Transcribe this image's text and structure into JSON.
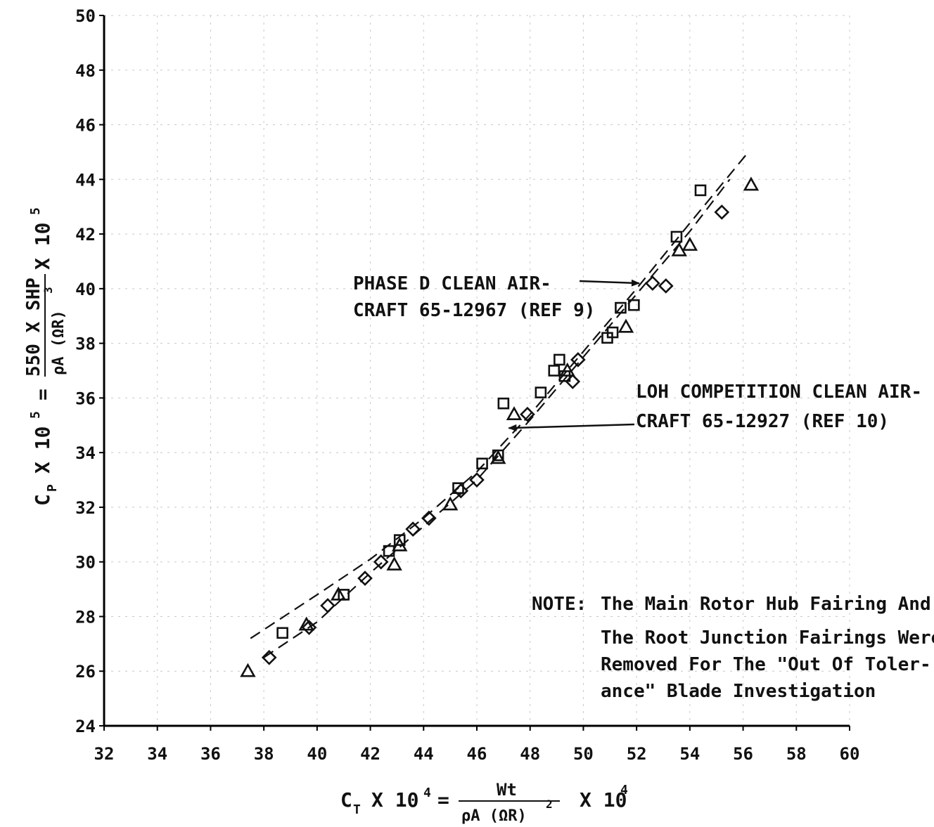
{
  "chart_data": {
    "type": "scatter",
    "x_axis": {
      "ticks": [
        32,
        34,
        36,
        38,
        40,
        42,
        44,
        46,
        48,
        50,
        52,
        54,
        56,
        58,
        60
      ],
      "range": [
        32,
        60
      ],
      "label": {
        "lhs": "C",
        "lhs_sub": "T",
        "times": "X 10",
        "exp": "4",
        "eq": "=",
        "numerator": "Wt",
        "denominator": "ρA (ΩR)",
        "den_exp": "2",
        "trail": "X 10",
        "trail_exp": "4"
      }
    },
    "y_axis": {
      "ticks": [
        24,
        26,
        28,
        30,
        32,
        34,
        36,
        38,
        40,
        42,
        44,
        46,
        48,
        50
      ],
      "range": [
        24,
        50
      ],
      "label": {
        "lhs": "C",
        "lhs_sub": "P",
        "times": "X 10",
        "exp": "5",
        "eq": "=",
        "numerator": "550 X SHP",
        "denominator": "ρA (ΩR)",
        "den_exp": "3",
        "trail": "X 10",
        "trail_exp": "5"
      }
    },
    "grid": true,
    "series": [
      {
        "marker": "square",
        "points": [
          [
            38.7,
            27.4
          ],
          [
            41.0,
            28.8
          ],
          [
            42.7,
            30.4
          ],
          [
            43.1,
            30.8
          ],
          [
            45.3,
            32.7
          ],
          [
            46.2,
            33.6
          ],
          [
            46.8,
            33.9
          ],
          [
            47.0,
            35.8
          ],
          [
            48.4,
            36.2
          ],
          [
            48.9,
            37.0
          ],
          [
            49.1,
            37.4
          ],
          [
            49.3,
            36.8
          ],
          [
            50.9,
            38.2
          ],
          [
            51.1,
            38.4
          ],
          [
            51.4,
            39.3
          ],
          [
            51.9,
            39.4
          ],
          [
            53.5,
            41.9
          ],
          [
            54.4,
            43.6
          ]
        ]
      },
      {
        "marker": "diamond",
        "points": [
          [
            38.2,
            26.5
          ],
          [
            39.7,
            27.6
          ],
          [
            40.4,
            28.4
          ],
          [
            41.8,
            29.4
          ],
          [
            42.4,
            30.0
          ],
          [
            43.6,
            31.2
          ],
          [
            44.2,
            31.6
          ],
          [
            45.4,
            32.6
          ],
          [
            46.0,
            33.0
          ],
          [
            47.9,
            35.4
          ],
          [
            49.6,
            36.6
          ],
          [
            49.8,
            37.4
          ],
          [
            52.6,
            40.2
          ],
          [
            53.1,
            40.1
          ],
          [
            55.2,
            42.8
          ]
        ]
      },
      {
        "marker": "triangle",
        "points": [
          [
            37.4,
            26.0
          ],
          [
            39.6,
            27.7
          ],
          [
            40.8,
            28.8
          ],
          [
            42.9,
            29.9
          ],
          [
            43.1,
            30.6
          ],
          [
            45.0,
            32.1
          ],
          [
            46.8,
            33.8
          ],
          [
            47.4,
            35.4
          ],
          [
            49.4,
            37.0
          ],
          [
            51.6,
            38.6
          ],
          [
            53.6,
            41.4
          ],
          [
            54.0,
            41.6
          ],
          [
            56.3,
            43.8
          ]
        ]
      }
    ],
    "curves": [
      {
        "style": "dashed",
        "points": [
          [
            37.5,
            27.2
          ],
          [
            40.0,
            28.8
          ],
          [
            42.0,
            30.1
          ],
          [
            44.0,
            31.6
          ],
          [
            46.0,
            33.3
          ],
          [
            48.0,
            35.4
          ],
          [
            50.0,
            37.7
          ],
          [
            52.0,
            40.0
          ],
          [
            54.0,
            42.4
          ],
          [
            56.2,
            45.0
          ]
        ]
      },
      {
        "style": "dashed",
        "points": [
          [
            38.0,
            26.5
          ],
          [
            40.0,
            27.8
          ],
          [
            42.0,
            29.6
          ],
          [
            44.0,
            31.3
          ],
          [
            46.0,
            33.0
          ],
          [
            48.0,
            35.2
          ],
          [
            50.0,
            37.5
          ],
          [
            52.0,
            39.8
          ],
          [
            54.0,
            42.1
          ],
          [
            55.5,
            44.0
          ]
        ]
      }
    ],
    "annotations": [
      {
        "lines": [
          "PHASE D CLEAN AIR-",
          "CRAFT 65-12967 (REF 9)"
        ],
        "arrow_to": [
          52.1,
          40.2
        ]
      },
      {
        "lines": [
          "LOH COMPETITION CLEAN AIR-",
          "CRAFT 65-12927 (REF 10)"
        ],
        "arrow_to": [
          47.2,
          34.9
        ]
      }
    ],
    "note": {
      "prefix": "NOTE:",
      "lines": [
        "The Main Rotor Hub Fairing And",
        "The Root Junction Fairings Were",
        "Removed For The \"Out Of Toler-",
        "ance\" Blade Investigation"
      ]
    }
  }
}
